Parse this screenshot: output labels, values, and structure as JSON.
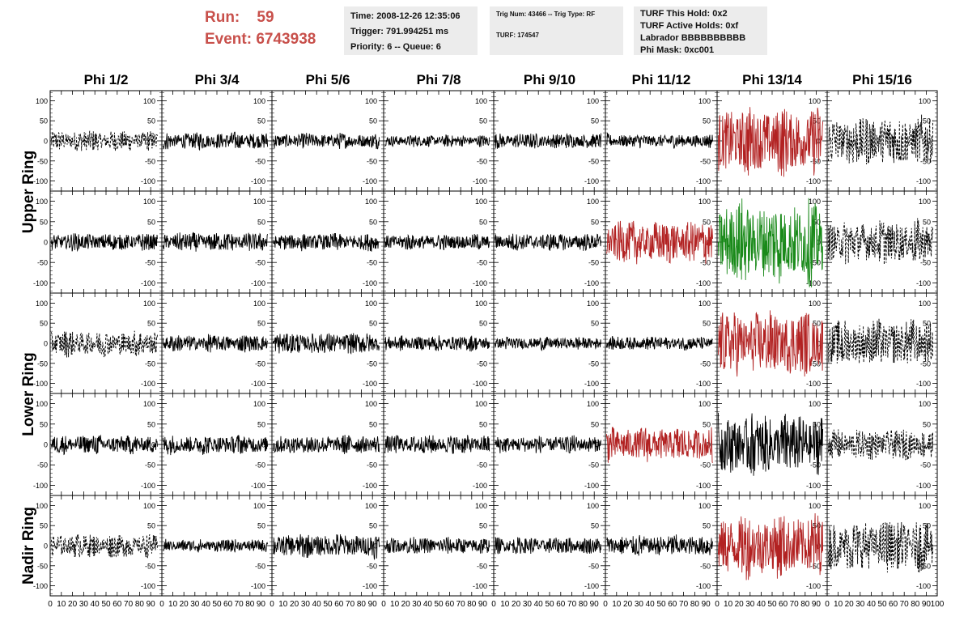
{
  "header": {
    "run_label": "Run:",
    "run_value": "59",
    "event_label": "Event:",
    "event_value": "6743938"
  },
  "info_time": {
    "time": "Time: 2008-12-26 12:35:06",
    "trigger": "Trigger: 791.994251 ms",
    "priority": "Priority: 6 -- Queue: 6"
  },
  "info_trig": {
    "trig": "Trig Num: 43466 -- Trig Type: RF",
    "turf": "TURF: 174547"
  },
  "info_turf": {
    "this_hold": "TURF This Hold: 0x2",
    "active_holds": "TURF Active Holds: 0xf",
    "labrador": "Labrador BBBBBBBBBB",
    "phi_mask": "Phi Mask: 0xc001"
  },
  "colors": {
    "black": "#000000",
    "red": "#b22222",
    "green": "#1a8a1a"
  },
  "chart_data": {
    "type": "line",
    "columns": [
      "Phi 1/2",
      "Phi 3/4",
      "Phi 5/6",
      "Phi 7/8",
      "Phi 9/10",
      "Phi 11/12",
      "Phi 13/14",
      "Phi 15/16"
    ],
    "row_groups": [
      "Upper Ring",
      "Lower Ring",
      "Nadir Ring"
    ],
    "xlim": [
      0,
      100
    ],
    "ylim": [
      -125,
      125
    ],
    "x_ticks": [
      0,
      10,
      20,
      30,
      40,
      50,
      60,
      70,
      80,
      90,
      100
    ],
    "x_tick_labels": [
      "0",
      "10",
      "20",
      "30",
      "40",
      "50",
      "60",
      "70",
      "80",
      "90",
      "100"
    ],
    "y_ticks": [
      -100,
      -50,
      0,
      50,
      100
    ],
    "y_tick_labels": [
      "-100",
      "-50",
      "0",
      "50",
      "100"
    ],
    "panel_styles": [
      [
        "dashed",
        "solid",
        "solid",
        "solid",
        "solid",
        "solid",
        "solid",
        "dashed"
      ],
      [
        "solid",
        "solid",
        "solid",
        "solid",
        "solid",
        "solid",
        "solid",
        "dashed"
      ],
      [
        "dashed",
        "solid",
        "solid",
        "solid",
        "solid",
        "solid",
        "solid",
        "dashed"
      ],
      [
        "solid",
        "solid",
        "solid",
        "solid",
        "solid",
        "solid",
        "solid",
        "dashed"
      ],
      [
        "dashed",
        "solid",
        "solid",
        "solid",
        "solid",
        "solid",
        "solid",
        "dashed"
      ]
    ],
    "panel_colors": [
      [
        "black",
        "black",
        "black",
        "black",
        "black",
        "black",
        "red",
        "black"
      ],
      [
        "black",
        "black",
        "black",
        "black",
        "black",
        "red",
        "green",
        "black"
      ],
      [
        "black",
        "black",
        "black",
        "black",
        "black",
        "black",
        "red",
        "black"
      ],
      [
        "black",
        "black",
        "black",
        "black",
        "black",
        "red",
        "black",
        "black"
      ],
      [
        "black",
        "black",
        "black",
        "black",
        "black",
        "black",
        "red",
        "black"
      ]
    ],
    "panel_amplitudes": [
      [
        25,
        20,
        18,
        14,
        18,
        16,
        80,
        60
      ],
      [
        20,
        22,
        20,
        18,
        20,
        50,
        95,
        50
      ],
      [
        30,
        20,
        25,
        18,
        15,
        16,
        75,
        55
      ],
      [
        22,
        22,
        22,
        22,
        20,
        40,
        70,
        35
      ],
      [
        28,
        15,
        28,
        20,
        20,
        25,
        75,
        60
      ]
    ]
  }
}
